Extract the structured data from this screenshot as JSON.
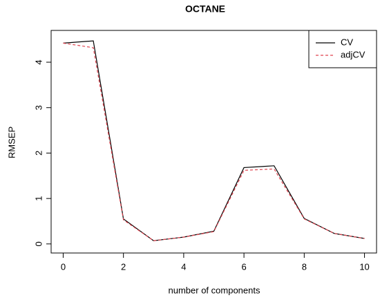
{
  "chart_data": {
    "type": "line",
    "title": "OCTANE",
    "xlabel": "number of components",
    "ylabel": "RMSEP",
    "x": [
      0,
      1,
      2,
      3,
      4,
      5,
      6,
      7,
      8,
      9,
      10
    ],
    "series": [
      {
        "name": "CV",
        "color": "#000000",
        "dash": false,
        "values": [
          4.42,
          4.47,
          0.55,
          0.07,
          0.15,
          0.28,
          1.68,
          1.72,
          0.56,
          0.23,
          0.12
        ]
      },
      {
        "name": "adjCV",
        "color": "#e0424e",
        "dash": true,
        "values": [
          4.42,
          4.32,
          0.53,
          0.07,
          0.15,
          0.27,
          1.62,
          1.65,
          0.55,
          0.23,
          0.12
        ]
      }
    ],
    "xlim": [
      -0.4,
      10.4
    ],
    "ylim": [
      -0.2,
      4.7
    ],
    "xticks": [
      0,
      2,
      4,
      6,
      8,
      10
    ],
    "yticks": [
      0,
      1,
      2,
      3,
      4
    ],
    "legend": "topright"
  }
}
